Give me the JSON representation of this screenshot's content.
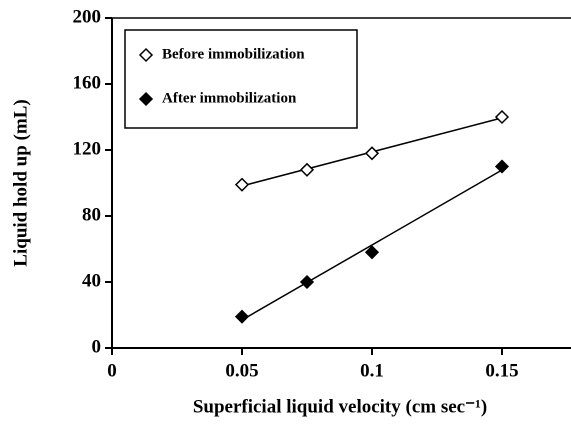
{
  "chart_data": {
    "type": "scatter",
    "xlabel": "Superficial liquid velocity (cm sec⁻¹)",
    "ylabel": "Liquid hold up (mL)",
    "x": [
      0.05,
      0.075,
      0.1,
      0.15
    ],
    "series": [
      {
        "name": "Before immobilization",
        "color": "#000000",
        "marker": "open-diamond",
        "values": [
          99,
          108,
          118,
          140
        ]
      },
      {
        "name": "After immobilization",
        "color": "#000000",
        "marker": "filled-diamond",
        "values": [
          19,
          40,
          58,
          110
        ]
      }
    ],
    "xlim": [
      0,
      0.175
    ],
    "xticks": [
      0,
      0.05,
      0.1,
      0.15
    ],
    "ylim": [
      0,
      200
    ],
    "yticks": [
      0,
      40,
      80,
      120,
      160,
      200
    ],
    "trendline": true,
    "legend": "upper left"
  }
}
